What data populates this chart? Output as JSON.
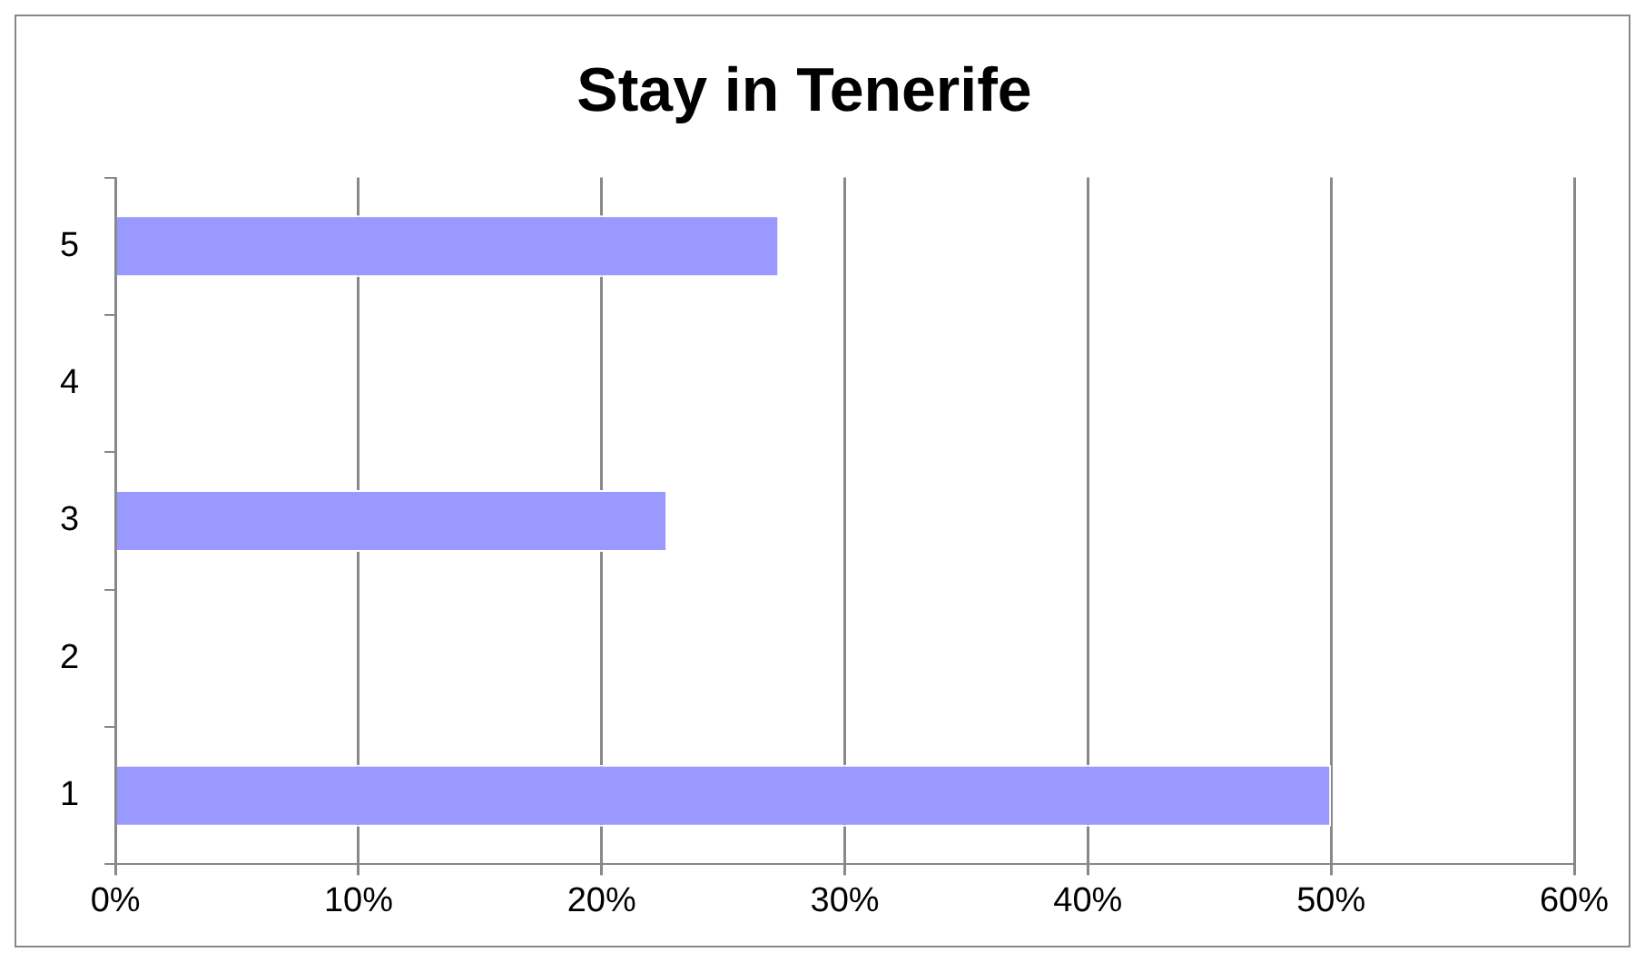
{
  "chart_data": {
    "type": "bar",
    "orientation": "horizontal",
    "title": "Stay in Tenerife",
    "categories": [
      "5",
      "4",
      "3",
      "2",
      "1"
    ],
    "values": [
      27.3,
      0,
      22.7,
      0,
      50
    ],
    "color": "#9999ff",
    "xlim": [
      0,
      60
    ],
    "xticks": [
      {
        "value": 0,
        "label": "0%"
      },
      {
        "value": 10,
        "label": "10%"
      },
      {
        "value": 20,
        "label": "20%"
      },
      {
        "value": 30,
        "label": "30%"
      },
      {
        "value": 40,
        "label": "40%"
      },
      {
        "value": 50,
        "label": "50%"
      },
      {
        "value": 60,
        "label": "60%"
      }
    ],
    "grid": "x",
    "legend": false
  }
}
